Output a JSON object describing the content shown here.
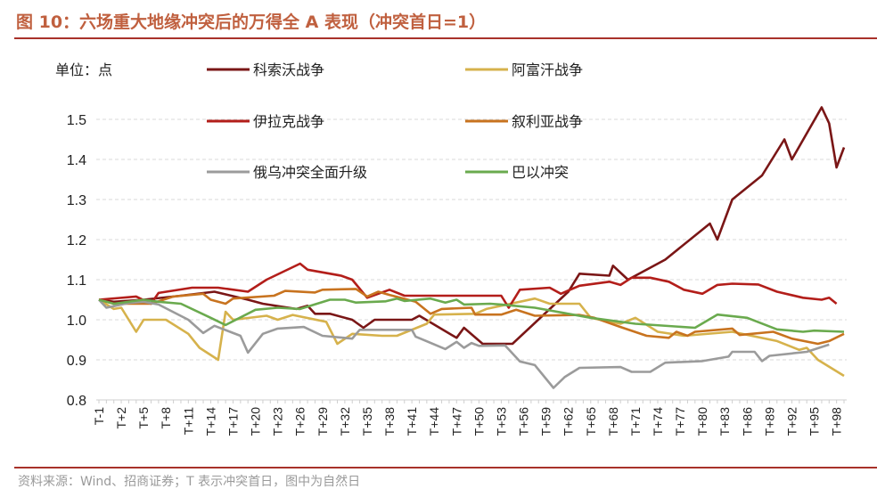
{
  "title": "图 10：六场重大地缘冲突后的万得全 A 表现（冲突首日=1）",
  "footer": "资料来源：Wind、招商证券；T 表示冲突首日，图中为自然日",
  "chart_data": {
    "type": "line",
    "title": "图 10：六场重大地缘冲突后的万得全 A 表现（冲突首日=1）",
    "unit_label": "单位：点",
    "xlabel": "",
    "ylabel": "",
    "ylim": [
      0.8,
      1.5
    ],
    "yticks": [
      "0.8",
      "0.9",
      "1.0",
      "1.1",
      "1.2",
      "1.3",
      "1.4",
      "1.5"
    ],
    "xlim": [
      -1,
      99
    ],
    "xticks": [
      "T-1",
      "T+2",
      "T+5",
      "T+8",
      "T+11",
      "T+14",
      "T+17",
      "T+20",
      "T+23",
      "T+26",
      "T+29",
      "T+32",
      "T+35",
      "T+38",
      "T+41",
      "T+44",
      "T+47",
      "T+50",
      "T+53",
      "T+56",
      "T+59",
      "T+62",
      "T+65",
      "T+68",
      "T+71",
      "T+74",
      "T+77",
      "T+80",
      "T+83",
      "T+86",
      "T+89",
      "T+92",
      "T+95",
      "T+98"
    ],
    "grid": "horizontal dashed",
    "legend": "top, two columns",
    "series": [
      {
        "name": "科索沃战争",
        "color": "#7a1616",
        "points": [
          [
            -1,
            1.05
          ],
          [
            1,
            1.045
          ],
          [
            5,
            1.05
          ],
          [
            10,
            1.06
          ],
          [
            14.5,
            1.07
          ],
          [
            19,
            1.05
          ],
          [
            21,
            1.04
          ],
          [
            25.5,
            1.027
          ],
          [
            27,
            1.035
          ],
          [
            28,
            1.015
          ],
          [
            30,
            1.015
          ],
          [
            33,
            1.0
          ],
          [
            34.5,
            0.98
          ],
          [
            36,
            1.0
          ],
          [
            41,
            1.0
          ],
          [
            42,
            1.01
          ],
          [
            47,
            0.955
          ],
          [
            48,
            0.98
          ],
          [
            50.5,
            0.94
          ],
          [
            54.5,
            0.94
          ],
          [
            62,
            1.07
          ],
          [
            63.5,
            1.115
          ],
          [
            67.5,
            1.11
          ],
          [
            68,
            1.135
          ],
          [
            70,
            1.1
          ],
          [
            75,
            1.15
          ],
          [
            81,
            1.24
          ],
          [
            82,
            1.2
          ],
          [
            84,
            1.3
          ],
          [
            88,
            1.36
          ],
          [
            91,
            1.45
          ],
          [
            92,
            1.4
          ],
          [
            96,
            1.53
          ],
          [
            97,
            1.49
          ],
          [
            98,
            1.38
          ],
          [
            99,
            1.43
          ]
        ]
      },
      {
        "name": "阿富汗战争",
        "color": "#d6b24c",
        "points": [
          [
            -1,
            1.05
          ],
          [
            1,
            1.027
          ],
          [
            2,
            1.03
          ],
          [
            4,
            0.97
          ],
          [
            5,
            1.0
          ],
          [
            8,
            1.0
          ],
          [
            11,
            0.965
          ],
          [
            12.5,
            0.93
          ],
          [
            15,
            0.9
          ],
          [
            16,
            1.02
          ],
          [
            17,
            1.0
          ],
          [
            21.5,
            1.01
          ],
          [
            23,
            1.0
          ],
          [
            25,
            1.012
          ],
          [
            29.5,
            0.995
          ],
          [
            31,
            0.94
          ],
          [
            33,
            0.965
          ],
          [
            37,
            0.96
          ],
          [
            39,
            0.96
          ],
          [
            43,
            0.99
          ],
          [
            44,
            1.013
          ],
          [
            49.5,
            1.015
          ],
          [
            51,
            1.027
          ],
          [
            57.5,
            1.053
          ],
          [
            59.5,
            1.04
          ],
          [
            63.5,
            1.04
          ],
          [
            65,
            1.005
          ],
          [
            69,
            0.99
          ],
          [
            71,
            1.005
          ],
          [
            74,
            0.97
          ],
          [
            77.5,
            0.96
          ],
          [
            84,
            0.97
          ],
          [
            90,
            0.947
          ],
          [
            93,
            0.925
          ],
          [
            94,
            0.93
          ],
          [
            95.5,
            0.9
          ],
          [
            99,
            0.86
          ]
        ]
      },
      {
        "name": "伊拉克战争",
        "color": "#b31e1a",
        "points": [
          [
            -1,
            1.05
          ],
          [
            4,
            1.058
          ],
          [
            6,
            1.04
          ],
          [
            7,
            1.067
          ],
          [
            11.5,
            1.08
          ],
          [
            15,
            1.08
          ],
          [
            19,
            1.07
          ],
          [
            21.5,
            1.1
          ],
          [
            26,
            1.14
          ],
          [
            27,
            1.125
          ],
          [
            31.5,
            1.11
          ],
          [
            33,
            1.1
          ],
          [
            35,
            1.055
          ],
          [
            38,
            1.075
          ],
          [
            40,
            1.06
          ],
          [
            53,
            1.06
          ],
          [
            54,
            1.03
          ],
          [
            55.5,
            1.075
          ],
          [
            59.5,
            1.08
          ],
          [
            61,
            1.065
          ],
          [
            63.5,
            1.085
          ],
          [
            67.5,
            1.095
          ],
          [
            69,
            1.087
          ],
          [
            70.5,
            1.105
          ],
          [
            73,
            1.105
          ],
          [
            75.5,
            1.095
          ],
          [
            77.5,
            1.075
          ],
          [
            80,
            1.065
          ],
          [
            82,
            1.087
          ],
          [
            84,
            1.09
          ],
          [
            87.5,
            1.088
          ],
          [
            90,
            1.07
          ],
          [
            93.5,
            1.055
          ],
          [
            96,
            1.05
          ],
          [
            97,
            1.055
          ],
          [
            98,
            1.04
          ]
        ]
      },
      {
        "name": "叙利亚战争",
        "color": "#c8731f",
        "points": [
          [
            -1,
            1.05
          ],
          [
            1,
            1.04
          ],
          [
            6,
            1.04
          ],
          [
            9,
            1.058
          ],
          [
            13,
            1.065
          ],
          [
            14,
            1.05
          ],
          [
            16,
            1.04
          ],
          [
            17,
            1.053
          ],
          [
            22.5,
            1.06
          ],
          [
            24,
            1.072
          ],
          [
            28,
            1.068
          ],
          [
            29,
            1.075
          ],
          [
            33.5,
            1.077
          ],
          [
            35,
            1.058
          ],
          [
            36.5,
            1.07
          ],
          [
            38,
            1.062
          ],
          [
            41.5,
            1.045
          ],
          [
            43.5,
            1.015
          ],
          [
            45,
            1.027
          ],
          [
            49,
            1.03
          ],
          [
            49.5,
            1.013
          ],
          [
            53,
            1.013
          ],
          [
            55,
            1.025
          ],
          [
            57.5,
            1.01
          ],
          [
            63.5,
            1.012
          ],
          [
            65.5,
            1.005
          ],
          [
            69,
            0.982
          ],
          [
            72.5,
            0.96
          ],
          [
            75.5,
            0.955
          ],
          [
            76.5,
            0.97
          ],
          [
            78,
            0.96
          ],
          [
            79,
            0.97
          ],
          [
            84,
            0.978
          ],
          [
            85,
            0.962
          ],
          [
            89.5,
            0.97
          ],
          [
            92,
            0.953
          ],
          [
            95.5,
            0.94
          ],
          [
            97,
            0.947
          ],
          [
            99,
            0.965
          ]
        ]
      },
      {
        "name": "俄乌冲突全面升级",
        "color": "#9b9b9b",
        "points": [
          [
            -1,
            1.05
          ],
          [
            0,
            1.03
          ],
          [
            3,
            1.042
          ],
          [
            5,
            1.045
          ],
          [
            7,
            1.038
          ],
          [
            11,
            1.0
          ],
          [
            13,
            0.967
          ],
          [
            14.5,
            0.985
          ],
          [
            18,
            0.96
          ],
          [
            19,
            0.918
          ],
          [
            21,
            0.965
          ],
          [
            23,
            0.978
          ],
          [
            26.5,
            0.982
          ],
          [
            29,
            0.96
          ],
          [
            33,
            0.953
          ],
          [
            34,
            0.975
          ],
          [
            41,
            0.975
          ],
          [
            41.5,
            0.958
          ],
          [
            45.5,
            0.927
          ],
          [
            47,
            0.945
          ],
          [
            48,
            0.93
          ],
          [
            49,
            0.942
          ],
          [
            50,
            0.935
          ],
          [
            53.5,
            0.936
          ],
          [
            55.5,
            0.896
          ],
          [
            57.5,
            0.887
          ],
          [
            60,
            0.83
          ],
          [
            61.5,
            0.857
          ],
          [
            63.5,
            0.88
          ],
          [
            69,
            0.882
          ],
          [
            70.5,
            0.87
          ],
          [
            73,
            0.87
          ],
          [
            75,
            0.893
          ],
          [
            80,
            0.897
          ],
          [
            83.5,
            0.908
          ],
          [
            84,
            0.92
          ],
          [
            87,
            0.92
          ],
          [
            88,
            0.897
          ],
          [
            89,
            0.91
          ],
          [
            94,
            0.92
          ],
          [
            97,
            0.938
          ]
        ]
      },
      {
        "name": "巴以冲突",
        "color": "#6aaa4e",
        "points": [
          [
            -1,
            1.05
          ],
          [
            1,
            1.04
          ],
          [
            5,
            1.05
          ],
          [
            7,
            1.045
          ],
          [
            10,
            1.04
          ],
          [
            14,
            1.005
          ],
          [
            16,
            0.987
          ],
          [
            20,
            1.025
          ],
          [
            23,
            1.03
          ],
          [
            26,
            1.027
          ],
          [
            30,
            1.05
          ],
          [
            32,
            1.05
          ],
          [
            33.5,
            1.043
          ],
          [
            37.5,
            1.046
          ],
          [
            39,
            1.053
          ],
          [
            40,
            1.047
          ],
          [
            43.5,
            1.053
          ],
          [
            45.5,
            1.043
          ],
          [
            47,
            1.05
          ],
          [
            48,
            1.038
          ],
          [
            51.5,
            1.04
          ],
          [
            53,
            1.038
          ],
          [
            57.5,
            1.03
          ],
          [
            65,
            1.005
          ],
          [
            71,
            0.99
          ],
          [
            79,
            0.98
          ],
          [
            82,
            1.013
          ],
          [
            86,
            1.005
          ],
          [
            90,
            0.976
          ],
          [
            93.5,
            0.97
          ],
          [
            95,
            0.973
          ],
          [
            99,
            0.97
          ]
        ]
      }
    ]
  }
}
